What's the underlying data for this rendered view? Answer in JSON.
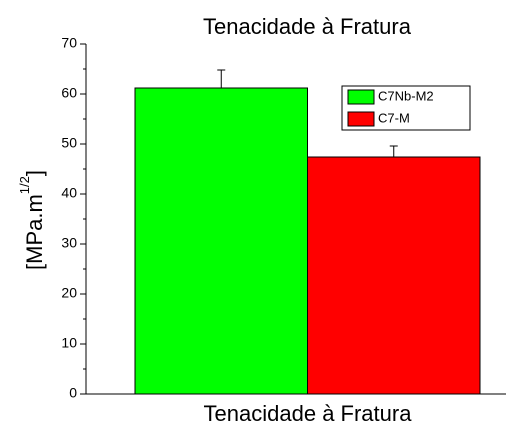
{
  "chart_data": {
    "type": "bar",
    "title": "Tenacidade à Fratura",
    "ylabel": "[MPa.m",
    "ylabel_sup": "1/2",
    "ylabel_end": "]",
    "categories": [
      "Tenacidade à Fratura"
    ],
    "series": [
      {
        "name": "C7Nb-M2",
        "color": "#00ff00",
        "values": [
          61.2
        ],
        "errors": [
          3.6
        ]
      },
      {
        "name": "C7-M",
        "color": "#ff0000",
        "values": [
          47.4
        ],
        "errors": [
          2.2
        ]
      }
    ],
    "ylim": [
      0,
      70
    ],
    "yticks": [
      0,
      10,
      20,
      30,
      40,
      50,
      60,
      70
    ],
    "legend": "upper right"
  }
}
